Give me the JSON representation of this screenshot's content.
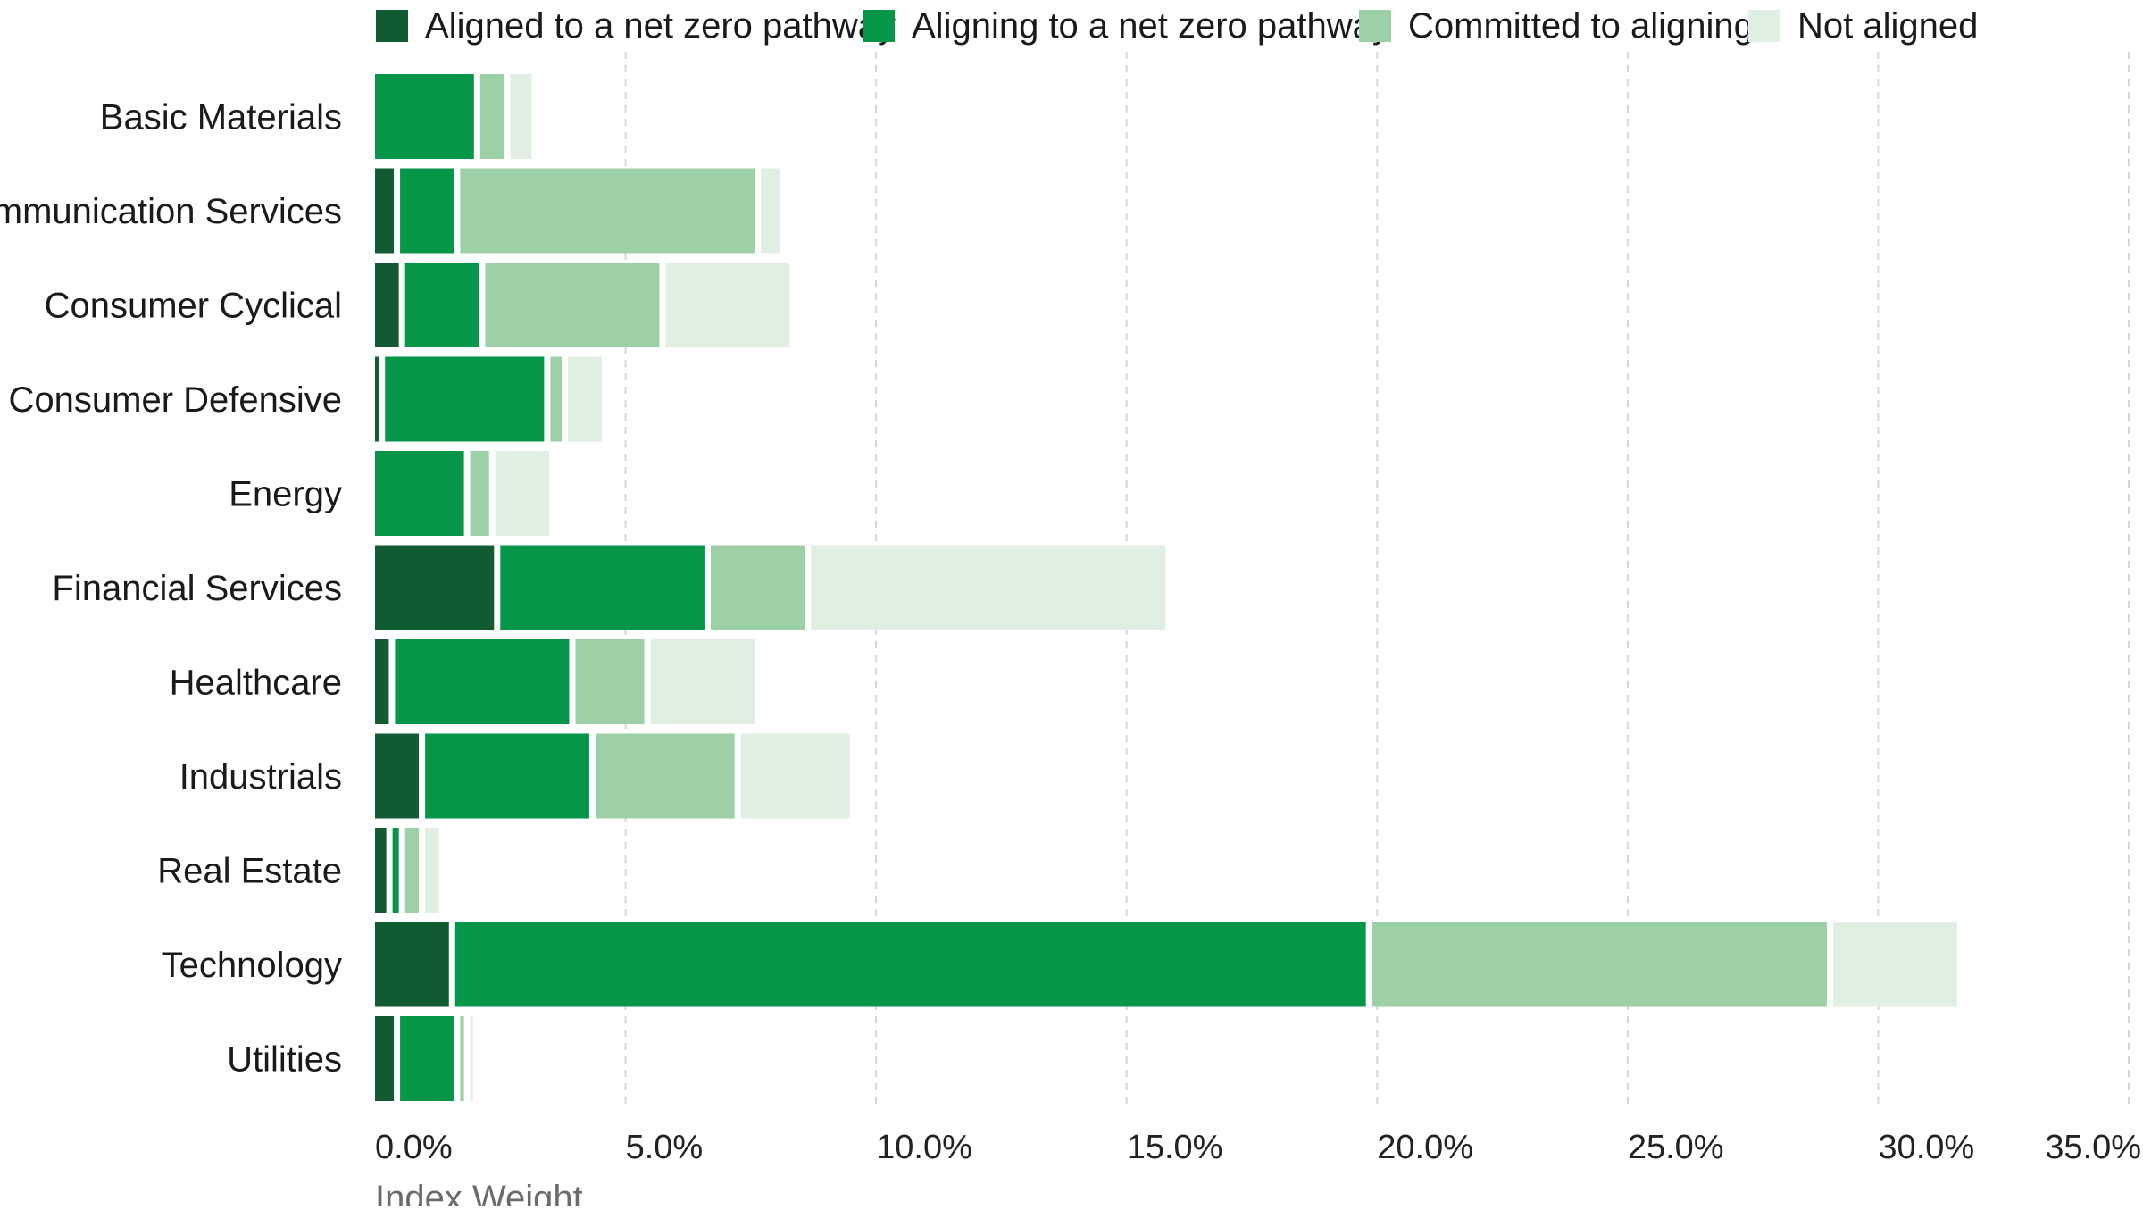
{
  "chart_data": {
    "type": "bar",
    "orientation": "horizontal",
    "stacked": true,
    "title": "",
    "xlabel": "Index Weight",
    "ylabel": "",
    "xlim": [
      0,
      35
    ],
    "x_ticks": [
      "0.0%",
      "5.0%",
      "10.0%",
      "15.0%",
      "20.0%",
      "25.0%",
      "30.0%",
      "35.0%"
    ],
    "grid": "vertical dashed",
    "legend_position": "top",
    "categories": [
      "Basic Materials",
      "Communication Services",
      "Consumer Cyclical",
      "Consumer Defensive",
      "Energy",
      "Financial Services",
      "Healthcare",
      "Industrials",
      "Real Estate",
      "Technology",
      "Utilities"
    ],
    "series": [
      {
        "name": "Aligned to a net zero pathway",
        "color": "#135b32",
        "values": [
          0.0,
          0.5,
          0.6,
          0.2,
          0.0,
          2.5,
          0.4,
          1.0,
          0.35,
          1.6,
          0.5
        ]
      },
      {
        "name": "Aligning to a net zero pathway",
        "color": "#06964a",
        "values": [
          2.1,
          1.2,
          1.6,
          3.3,
          1.9,
          4.2,
          3.6,
          3.4,
          0.25,
          18.3,
          1.2
        ]
      },
      {
        "name": "Committed to aligning",
        "color": "#9dd0a6",
        "values": [
          0.6,
          6.0,
          3.6,
          0.35,
          0.5,
          2.0,
          1.5,
          2.9,
          0.4,
          9.2,
          0.2
        ]
      },
      {
        "name": "Not aligned",
        "color": "#e0efe1",
        "values": [
          0.55,
          0.5,
          2.6,
          0.8,
          1.2,
          7.2,
          2.2,
          2.3,
          0.4,
          2.6,
          0.1
        ]
      }
    ]
  }
}
